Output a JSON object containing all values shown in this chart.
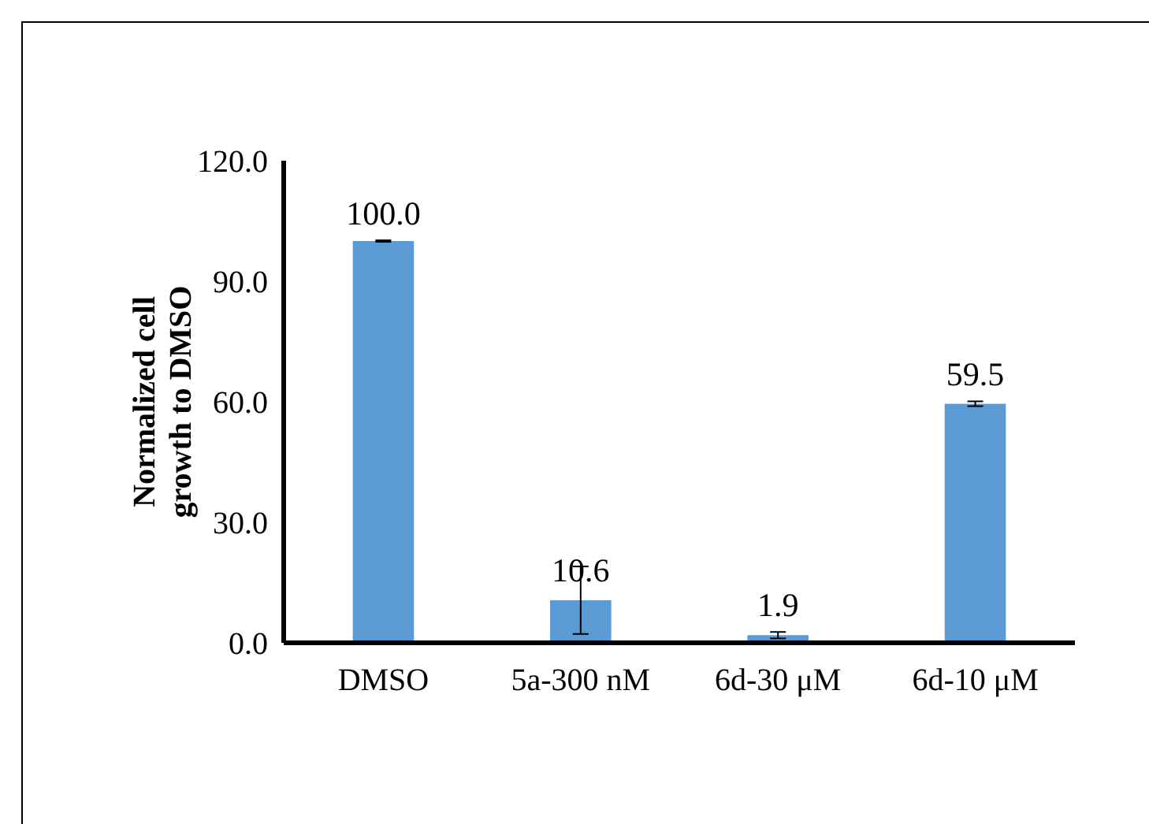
{
  "chart_data": {
    "type": "bar",
    "ylabel": "Normalized cell growth to DMSO",
    "categories": [
      "DMSO",
      "5a-300 nM",
      "6d-30 μM",
      "6d-10 μM"
    ],
    "values": [
      100.0,
      10.6,
      1.9,
      59.5
    ],
    "errors": [
      0.2,
      8.4,
      0.8,
      0.6
    ],
    "color": "#5b9bd5",
    "ylim": [
      0,
      120
    ],
    "yticks": [
      {
        "value": 0,
        "label": "0.0"
      },
      {
        "value": 30,
        "label": "30.0"
      },
      {
        "value": 60,
        "label": "60.0"
      },
      {
        "value": 90,
        "label": "90.0"
      },
      {
        "value": 120,
        "label": "120.0"
      }
    ],
    "value_labels": [
      "100.0",
      "10.6",
      "1.9",
      "59.5"
    ],
    "grid": false
  }
}
